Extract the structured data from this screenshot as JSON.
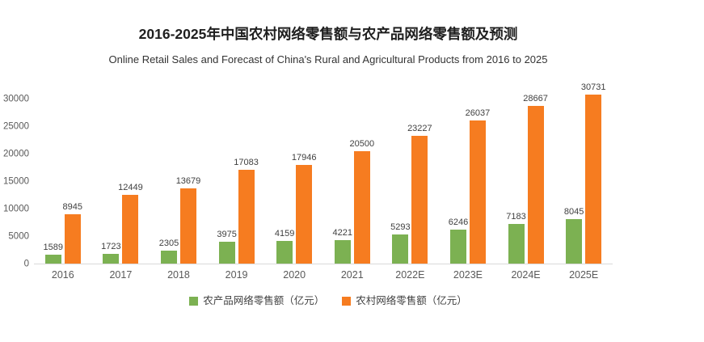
{
  "chart_data": {
    "type": "bar",
    "title": "2016-2025年中国农村网络零售额与农产品网络零售额及预测",
    "subtitle": "Online Retail Sales and Forecast of China's Rural and Agricultural Products from 2016 to 2025",
    "categories": [
      "2016",
      "2017",
      "2018",
      "2019",
      "2020",
      "2021",
      "2022E",
      "2023E",
      "2024E",
      "2025E"
    ],
    "series": [
      {
        "name": "农产品网络零售额（亿元）",
        "color": "#7cb152",
        "values": [
          1589,
          1723,
          2305,
          3975,
          4159,
          4221,
          5293,
          6246,
          7183,
          8045
        ]
      },
      {
        "name": "农村网络零售额（亿元）",
        "color": "#f67c20",
        "values": [
          8945,
          12449,
          13679,
          17083,
          17946,
          20500,
          23227,
          26037,
          28667,
          30731
        ]
      }
    ],
    "y_axis": {
      "ticks": [
        0,
        5000,
        10000,
        15000,
        20000,
        25000,
        30000
      ],
      "max": 33400
    },
    "grid": false,
    "data_labels": true,
    "legend_position": "bottom",
    "axis_line_color": "#d9d9d9",
    "label_color": "#404040",
    "tick_color": "#595959"
  }
}
